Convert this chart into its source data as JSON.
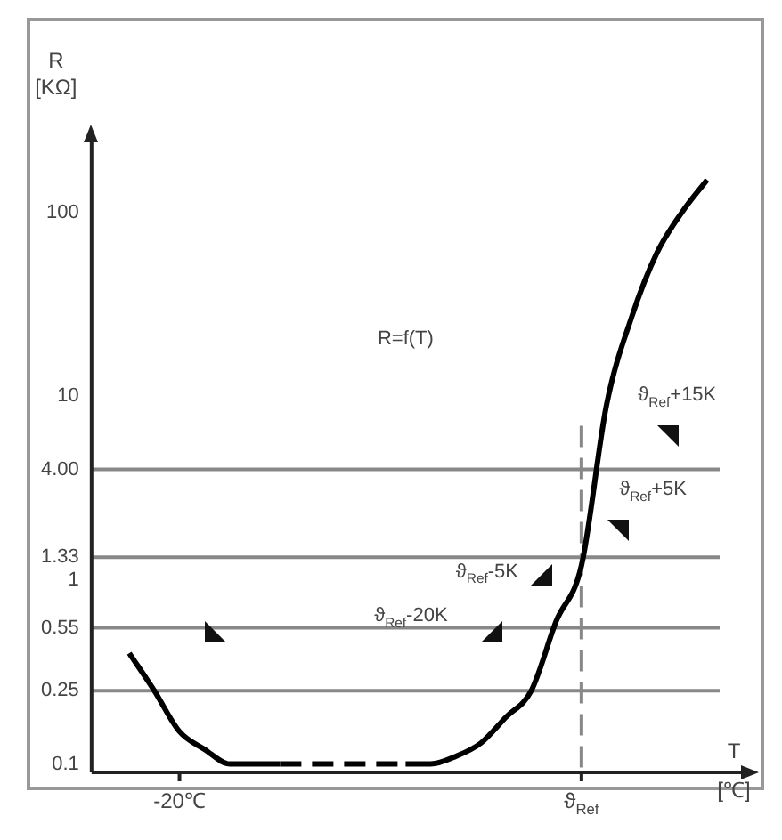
{
  "chart_data": {
    "type": "line",
    "title": "R=f(T)",
    "ylabel": "R [KΩ]",
    "xlabel": "T [℃]",
    "categories": [
      null,
      null,
      null,
      "-20℃",
      null,
      null,
      null,
      null,
      null,
      null,
      null,
      null,
      null,
      null,
      null,
      null,
      null,
      null,
      null,
      "ϑ$_{Ref}$",
      null,
      null,
      null,
      null,
      null
    ],
    "series": [
      {
        "color": "#000000",
        "line_style": "solid",
        "values": [
          null,
          0.4,
          0.25,
          0.15,
          0.12,
          0.1,
          0.1,
          0.1,
          null,
          null,
          null,
          null,
          null,
          null,
          null,
          null,
          null,
          null,
          null,
          null,
          null,
          null,
          null,
          null,
          null
        ]
      },
      {
        "color": "#000000",
        "line_style": "dashed",
        "values": [
          null,
          null,
          null,
          null,
          null,
          null,
          null,
          0.1,
          0.1,
          0.1,
          0.1,
          0.1,
          0.1,
          null,
          null,
          null,
          null,
          null,
          null,
          null,
          null,
          null,
          null,
          null,
          null
        ]
      },
      {
        "color": "#000000",
        "line_style": "solid",
        "values": [
          null,
          null,
          null,
          null,
          null,
          null,
          null,
          null,
          null,
          null,
          null,
          null,
          0.1,
          0.1,
          0.11,
          0.13,
          0.18,
          0.25,
          0.6,
          1.2,
          9,
          27,
          60,
          100,
          150
        ]
      }
    ],
    "log": "y",
    "ylim": [
      0.09,
      240
    ],
    "yticks": [
      100,
      10,
      {
        "value": 4,
        "label": "4.00"
      },
      1.33,
      1,
      0.55,
      0.25,
      0.1
    ],
    "ref_lines": [
      {
        "axis": "y",
        "value": 4,
        "color": "#888888"
      },
      {
        "axis": "y",
        "value": 1.33,
        "color": "#888888"
      },
      {
        "axis": "y",
        "value": 0.55,
        "color": "#888888"
      },
      {
        "axis": "y",
        "value": 0.25,
        "color": "#888888"
      },
      {
        "axis": "x",
        "value": "ϑ$_{Ref}$",
        "color": "#888888",
        "line_style": "dashed"
      }
    ],
    "annotations": [
      "ϑ$_{Ref}$+15K",
      "ϑ$_{Ref}$+5K",
      "ϑ$_{Ref}$-5K",
      "ϑ$_{Ref}$-20K"
    ],
    "grid": false,
    "legend": false
  }
}
